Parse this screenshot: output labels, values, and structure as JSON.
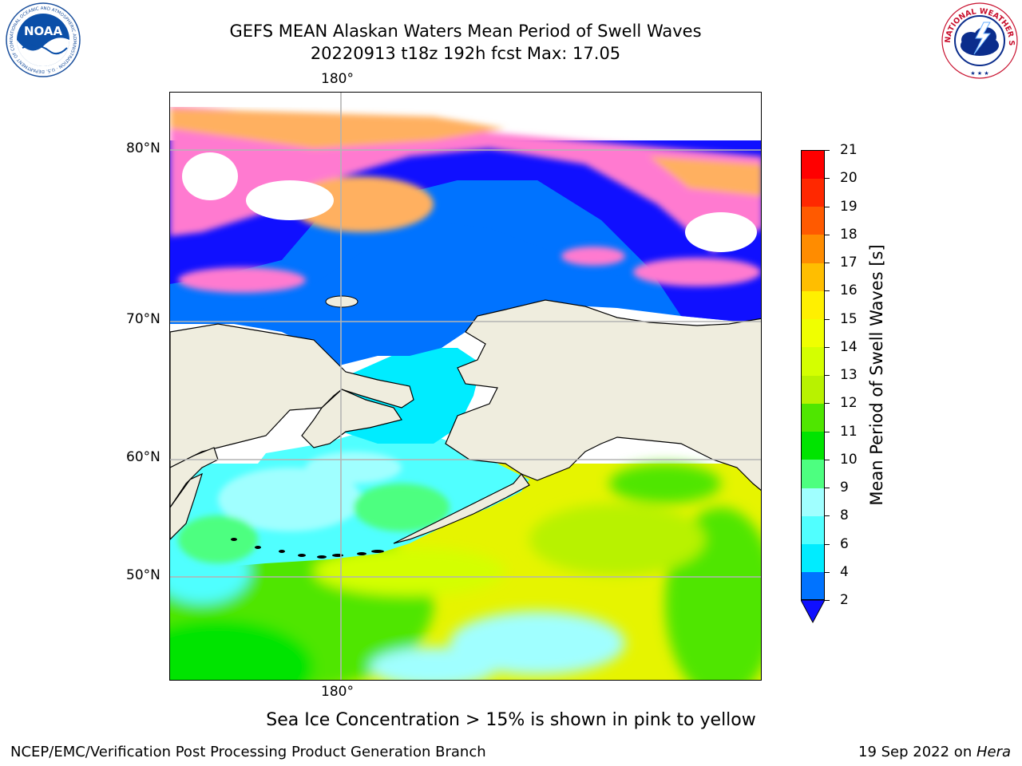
{
  "title": {
    "line1": "GEFS MEAN Alaskan Waters Mean Period of Swell Waves",
    "line2": "20220913 t18z 192h fcst   Max: 17.05"
  },
  "logos": {
    "left": {
      "name": "noaa-logo",
      "text": "NOAA",
      "ring_text": "NATIONAL OCEANIC AND ATMOSPHERIC ADMINISTRATION · U.S. DEPARTMENT OF COMMERCE"
    },
    "right": {
      "name": "nws-logo",
      "ring_text": "NATIONAL WEATHER SERVICE"
    }
  },
  "map": {
    "lon_label_top": "180°",
    "lon_label_bottom": "180°",
    "lat_labels": [
      "80°N",
      "70°N",
      "60°N",
      "50°N"
    ],
    "land_color": "#efedde",
    "grid_color": "#b4b4b4"
  },
  "colorbar": {
    "label": "Mean Period of Swell Waves [s]",
    "ticks": [
      "2",
      "4",
      "6",
      "8",
      "9",
      "10",
      "11",
      "12",
      "13",
      "14",
      "15",
      "16",
      "17",
      "18",
      "19",
      "20",
      "21"
    ],
    "extend_color": "#1010ff",
    "colors": [
      "#0073ff",
      "#00ecff",
      "#50ffff",
      "#a0ffff",
      "#4dff80",
      "#00e400",
      "#4fe600",
      "#b8f200",
      "#d4ff00",
      "#f0ff00",
      "#fff000",
      "#ffbe00",
      "#ff8c00",
      "#ff5a00",
      "#ff2800",
      "#ff0000"
    ]
  },
  "note": "Sea Ice Concentration > 15% is shown in pink to yellow",
  "footer": {
    "left": "NCEP/EMC/Verification Post Processing Product Generation Branch",
    "right_prefix": "19 Sep 2022 on ",
    "right_italic": "Hera"
  }
}
